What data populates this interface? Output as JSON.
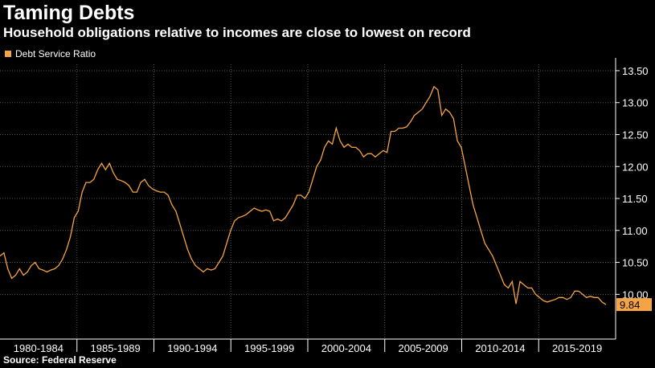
{
  "title": "Taming Debts",
  "subtitle": "Household obligations relative to incomes are close to lowest on record",
  "source": "Source: Federal Reserve",
  "accent_color": "#f5a445",
  "chart_data": {
    "type": "line",
    "legend": "top-left",
    "grid": true,
    "ylim": [
      9.3,
      13.6
    ],
    "y_ticks": [
      "10.00",
      "10.50",
      "11.00",
      "11.50",
      "12.00",
      "12.50",
      "13.00",
      "13.50"
    ],
    "x_tick_labels": [
      "1980-1984",
      "1985-1989",
      "1990-1994",
      "1995-1999",
      "2000-2004",
      "2005-2009",
      "2010-2014",
      "2015-2019"
    ],
    "last_value_label": "9.84",
    "series": [
      {
        "name": "Debt Service Ratio",
        "color": "#f5a445",
        "values": [
          10.6,
          10.65,
          10.4,
          10.25,
          10.3,
          10.4,
          10.3,
          10.35,
          10.45,
          10.5,
          10.4,
          10.38,
          10.35,
          10.38,
          10.4,
          10.45,
          10.55,
          10.7,
          10.9,
          11.2,
          11.3,
          11.6,
          11.75,
          11.75,
          11.8,
          11.95,
          12.05,
          11.95,
          12.05,
          11.9,
          11.8,
          11.78,
          11.75,
          11.7,
          11.6,
          11.6,
          11.75,
          11.8,
          11.7,
          11.65,
          11.62,
          11.6,
          11.6,
          11.55,
          11.4,
          11.3,
          11.1,
          10.9,
          10.7,
          10.55,
          10.45,
          10.4,
          10.35,
          10.4,
          10.38,
          10.4,
          10.5,
          10.6,
          10.8,
          11.0,
          11.15,
          11.2,
          11.22,
          11.25,
          11.3,
          11.35,
          11.32,
          11.3,
          11.32,
          11.3,
          11.15,
          11.18,
          11.15,
          11.2,
          11.3,
          11.4,
          11.55,
          11.55,
          11.5,
          11.6,
          11.8,
          12.0,
          12.1,
          12.3,
          12.4,
          12.35,
          12.6,
          12.4,
          12.3,
          12.35,
          12.3,
          12.3,
          12.25,
          12.15,
          12.2,
          12.2,
          12.15,
          12.2,
          12.25,
          12.22,
          12.55,
          12.55,
          12.6,
          12.6,
          12.62,
          12.7,
          12.8,
          12.85,
          12.9,
          13.0,
          13.1,
          13.25,
          13.2,
          12.8,
          12.9,
          12.85,
          12.75,
          12.4,
          12.3,
          12.0,
          11.7,
          11.4,
          11.2,
          11.0,
          10.8,
          10.7,
          10.6,
          10.45,
          10.3,
          10.15,
          10.1,
          10.2,
          9.85,
          10.2,
          10.15,
          10.1,
          10.1,
          10.0,
          9.95,
          9.9,
          9.88,
          9.9,
          9.92,
          9.95,
          9.95,
          9.92,
          9.95,
          10.05,
          10.05,
          10.0,
          9.95,
          9.97,
          9.95,
          9.95,
          9.88,
          9.84
        ]
      }
    ]
  }
}
